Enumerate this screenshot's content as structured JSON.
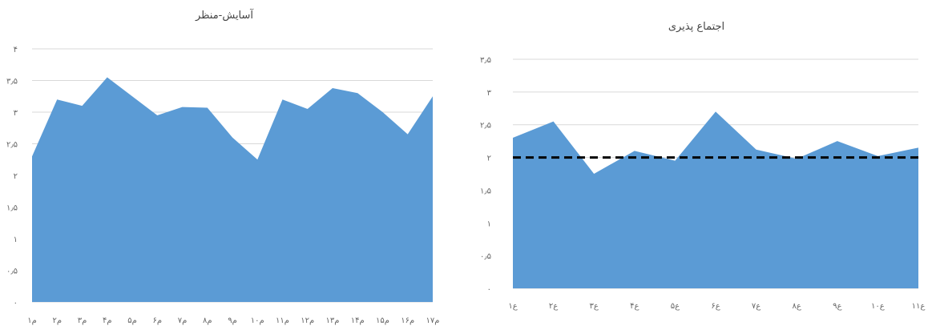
{
  "chart_data": [
    {
      "type": "area",
      "title": "آسایش-منظر",
      "categories": [
        "۱م",
        "۲م",
        "۳م",
        "۴م",
        "۵م",
        "۶م",
        "۷م",
        "۸م",
        "۹م",
        "۱۰م",
        "۱۱م",
        "۱۲م",
        "۱۳م",
        "۱۴م",
        "۱۵م",
        "۱۶م",
        "۱۷م"
      ],
      "values": [
        2.3,
        3.2,
        3.1,
        3.55,
        3.25,
        2.95,
        3.08,
        3.07,
        2.6,
        2.25,
        3.2,
        3.05,
        3.38,
        3.3,
        3.0,
        2.65,
        3.25
      ],
      "ylim": [
        0,
        4
      ],
      "yticks": [
        "۰",
        "۰٫۵",
        "۱",
        "۱٫۵",
        "۲",
        "۲٫۵",
        "۳",
        "۳٫۵",
        "۴"
      ],
      "grid": true,
      "color": "#5b9bd5"
    },
    {
      "type": "area",
      "title": "اجتماع پذیری",
      "categories": [
        "۱ع",
        "۲ع",
        "۳ع",
        "۴ع",
        "۵ع",
        "۶ع",
        "۷ع",
        "۸ع",
        "۹ع",
        "۱۰ع",
        "۱۱ع"
      ],
      "values": [
        2.3,
        2.55,
        1.75,
        2.1,
        1.95,
        2.7,
        2.12,
        1.98,
        2.25,
        2.02,
        2.15
      ],
      "reference_line": 2,
      "ylim": [
        0,
        3.5
      ],
      "yticks": [
        "۰",
        "۰٫۵",
        "۱",
        "۱٫۵",
        "۲",
        "۲٫۵",
        "۳",
        "۳٫۵"
      ],
      "grid": true,
      "color": "#5b9bd5"
    }
  ]
}
